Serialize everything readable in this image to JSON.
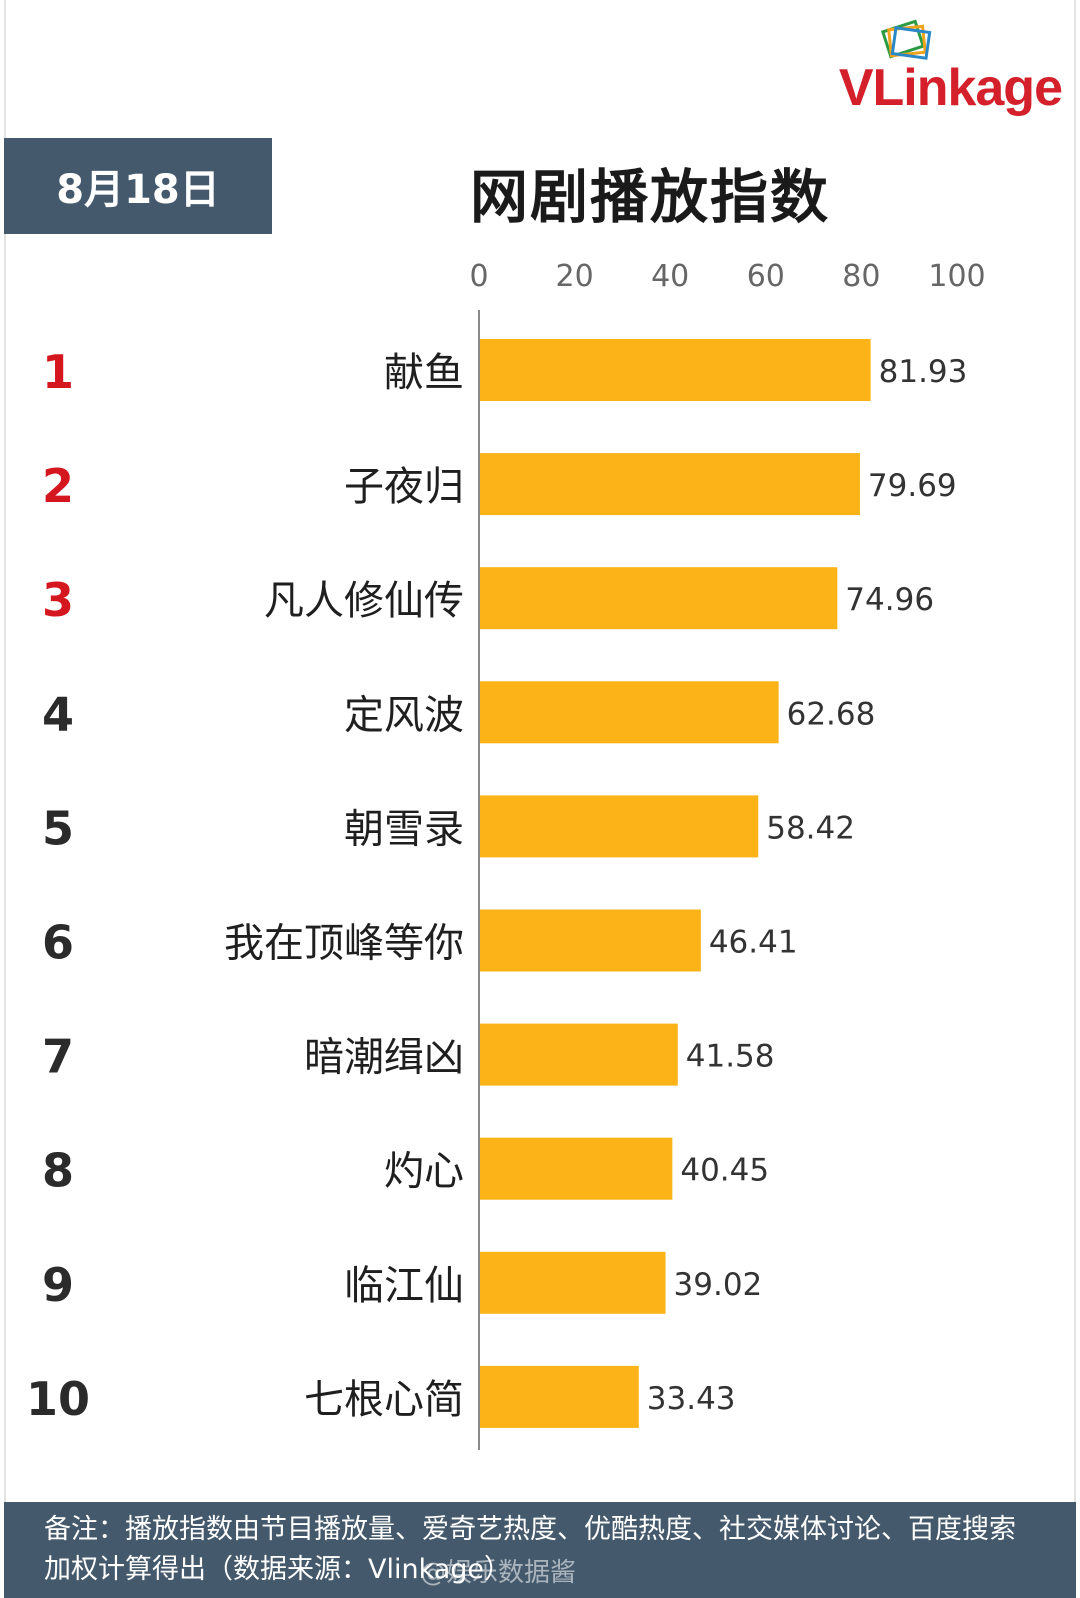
{
  "brand": {
    "logo_text": "VLinkage"
  },
  "header": {
    "date": "8月18日",
    "title": "网剧播放指数"
  },
  "chart_data": {
    "type": "bar",
    "orientation": "horizontal",
    "title": "网剧播放指数",
    "xlim": [
      0,
      100
    ],
    "x_ticks": [
      "0",
      "20",
      "40",
      "60",
      "80",
      "100"
    ],
    "ranks": [
      "1",
      "2",
      "3",
      "4",
      "5",
      "6",
      "7",
      "8",
      "9",
      "10"
    ],
    "categories": [
      "献鱼",
      "子夜归",
      "凡人修仙传",
      "定风波",
      "朝雪录",
      "我在顶峰等你",
      "暗潮缉凶",
      "灼心",
      "临江仙",
      "七根心简"
    ],
    "values": [
      81.93,
      79.69,
      74.96,
      62.68,
      58.42,
      46.41,
      41.58,
      40.45,
      39.02,
      33.43
    ],
    "value_labels": [
      "81.93",
      "79.69",
      "74.96",
      "62.68",
      "58.42",
      "46.41",
      "41.58",
      "40.45",
      "39.02",
      "33.43"
    ],
    "grid": false,
    "legend": "none"
  },
  "colors": {
    "bar": "#fbb317",
    "top_rank": "#d4161f",
    "rank": "#2b2b2b",
    "panel": "#44596b"
  },
  "footer": {
    "note": "备注：播放指数由节目播放量、爱奇艺热度、优酷热度、社交媒体讨论、百度搜索加权计算得出（数据来源：Vlinkage）"
  },
  "watermark": "@娱乐数据酱"
}
